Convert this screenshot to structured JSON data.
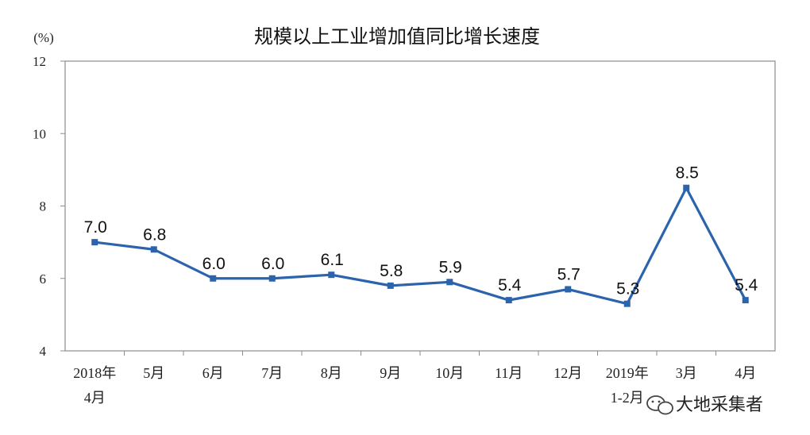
{
  "chart_data": {
    "type": "line",
    "title": "规模以上工业增加值同比增长速度",
    "unit_label": "(%)",
    "ylim": [
      4,
      12
    ],
    "yticks": [
      4,
      6,
      8,
      10,
      12
    ],
    "categories": [
      [
        "2018年",
        "4月"
      ],
      [
        "5月"
      ],
      [
        "6月"
      ],
      [
        "7月"
      ],
      [
        "8月"
      ],
      [
        "9月"
      ],
      [
        "10月"
      ],
      [
        "11月"
      ],
      [
        "12月"
      ],
      [
        "2019年",
        "1-2月"
      ],
      [
        "3月"
      ],
      [
        "4月"
      ]
    ],
    "series": [
      {
        "values": [
          7.0,
          6.8,
          6.0,
          6.0,
          6.1,
          5.8,
          5.9,
          5.4,
          5.7,
          5.3,
          8.5,
          5.4
        ]
      }
    ],
    "data_labels": [
      "7.0",
      "6.8",
      "6.0",
      "6.0",
      "6.1",
      "5.8",
      "5.9",
      "5.4",
      "5.7",
      "5.3",
      "8.5",
      "5.4"
    ],
    "grid": false,
    "line_color": "#2b63ac"
  },
  "watermark": {
    "text": "大地采集者",
    "icon": "wechat-icon"
  }
}
